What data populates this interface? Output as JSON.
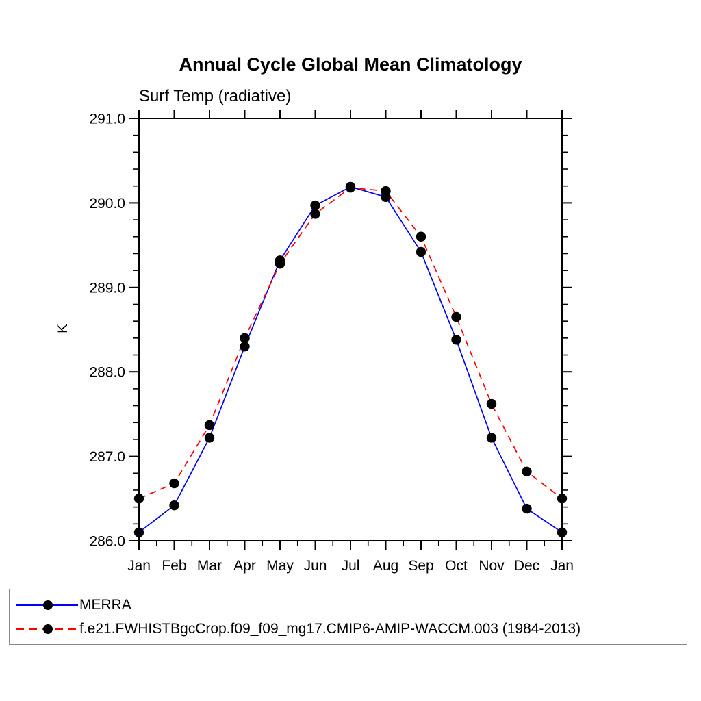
{
  "chart_data": {
    "type": "line",
    "title": "Annual Cycle Global Mean Climatology",
    "subtitle": "Surf Temp (radiative)",
    "ylabel": "K",
    "xlabel": "",
    "ylim": [
      286.0,
      291.0
    ],
    "y_ticks": [
      "286.0",
      "287.0",
      "288.0",
      "289.0",
      "290.0",
      "291.0"
    ],
    "y_minor_step": 0.2,
    "grid": false,
    "legend_position": "bottom",
    "axis_color": "#000000",
    "x": [
      "Jan",
      "Feb",
      "Mar",
      "Apr",
      "May",
      "Jun",
      "Jul",
      "Aug",
      "Sep",
      "Oct",
      "Nov",
      "Dec",
      "Jan"
    ],
    "series": [
      {
        "name": "MERRA",
        "color": "#0000ff",
        "style": "solid",
        "marker": "circle",
        "marker_color": "#000000",
        "values": [
          286.1,
          286.42,
          287.22,
          288.3,
          289.32,
          289.97,
          290.19,
          290.07,
          289.42,
          288.38,
          287.22,
          286.38,
          286.1
        ]
      },
      {
        "name": "f.e21.FWHISTBgcCrop.f09_f09_mg17.CMIP6-AMIP-WACCM.003 (1984-2013)",
        "color": "#ff0000",
        "style": "dashed",
        "marker": "circle",
        "marker_color": "#000000",
        "values": [
          286.5,
          286.68,
          287.37,
          288.4,
          289.28,
          289.87,
          290.18,
          290.14,
          289.6,
          288.65,
          287.62,
          286.82,
          286.5
        ]
      }
    ]
  }
}
